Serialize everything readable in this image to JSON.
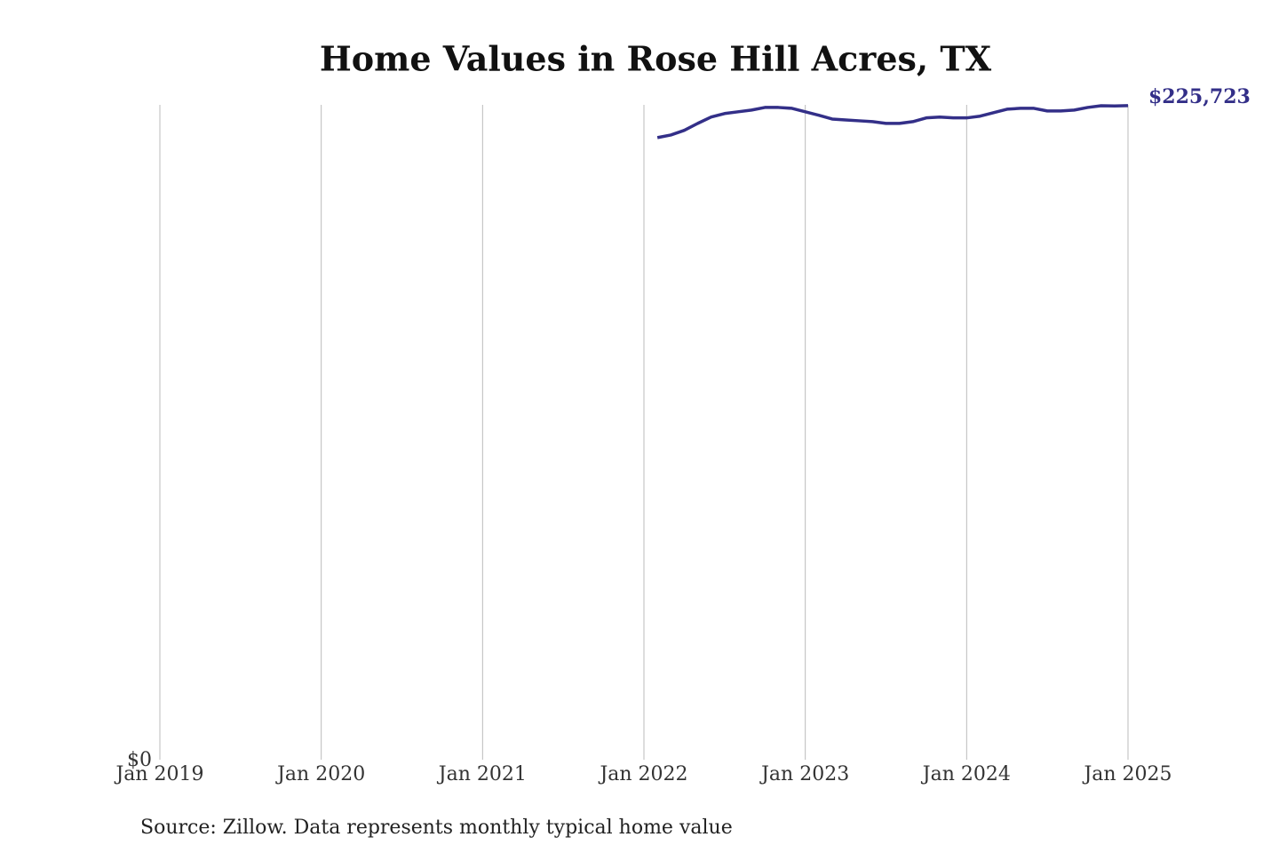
{
  "chart_data": {
    "type": "line",
    "title": "Home Values in Rose Hill Acres, TX",
    "source": "Source: Zillow. Data represents monthly typical home value",
    "x": [
      "2022-02",
      "2022-03",
      "2022-04",
      "2022-05",
      "2022-06",
      "2022-07",
      "2022-08",
      "2022-09",
      "2022-10",
      "2022-11",
      "2022-12",
      "2023-01",
      "2023-02",
      "2023-03",
      "2023-04",
      "2023-05",
      "2023-06",
      "2023-07",
      "2023-08",
      "2023-09",
      "2023-10",
      "2023-11",
      "2023-12",
      "2024-01",
      "2024-02",
      "2024-03",
      "2024-04",
      "2024-05",
      "2024-06",
      "2024-07",
      "2024-08",
      "2024-09",
      "2024-10",
      "2024-11",
      "2024-12",
      "2025-01"
    ],
    "values": [
      214700,
      215600,
      217200,
      219600,
      221800,
      223000,
      223600,
      224200,
      225100,
      225100,
      224800,
      223600,
      222400,
      221100,
      220800,
      220500,
      220200,
      219600,
      219600,
      220200,
      221500,
      221800,
      221500,
      221500,
      222100,
      223300,
      224500,
      224800,
      224800,
      223900,
      223900,
      224200,
      225100,
      225700,
      225600,
      225723
    ],
    "value_labels": [
      null,
      null,
      null,
      null,
      null,
      null,
      null,
      null,
      null,
      null,
      null,
      null,
      null,
      null,
      null,
      null,
      null,
      null,
      null,
      null,
      null,
      null,
      null,
      null,
      null,
      null,
      null,
      null,
      null,
      null,
      null,
      null,
      null,
      null,
      null,
      "$225,723"
    ],
    "color": "#332f88",
    "xlim": [
      "2019-01",
      "2025-01"
    ],
    "xticks": [
      {
        "value": "2019-01",
        "label": "Jan 2019"
      },
      {
        "value": "2020-01",
        "label": "Jan 2020"
      },
      {
        "value": "2021-01",
        "label": "Jan 2021"
      },
      {
        "value": "2022-01",
        "label": "Jan 2022"
      },
      {
        "value": "2023-01",
        "label": "Jan 2023"
      },
      {
        "value": "2024-01",
        "label": "Jan 2024"
      },
      {
        "value": "2025-01",
        "label": "Jan 2025"
      }
    ],
    "ylim": [
      0,
      226000
    ],
    "yticks": [
      {
        "value": 0,
        "label": "$0"
      }
    ],
    "grid": true
  }
}
